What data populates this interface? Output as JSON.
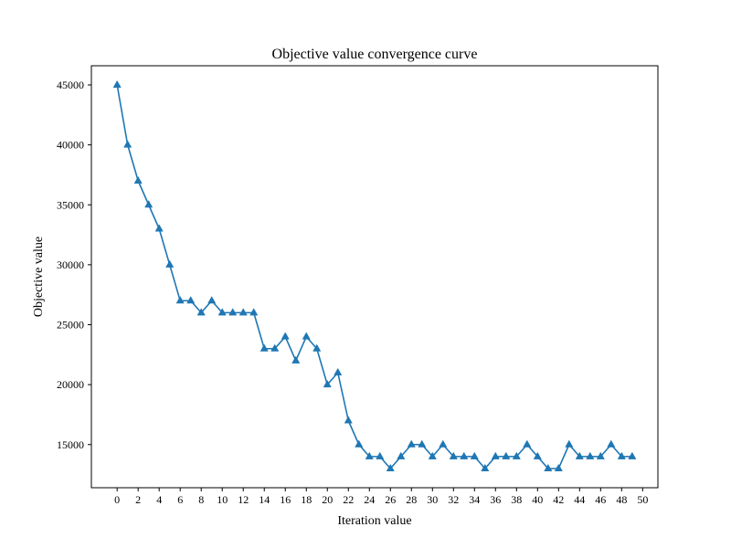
{
  "chart_data": {
    "type": "line",
    "title": "Objective value convergence curve",
    "xlabel": "Iteration value",
    "ylabel": "Objective value",
    "x": [
      0,
      1,
      2,
      3,
      4,
      5,
      6,
      7,
      8,
      9,
      10,
      11,
      12,
      13,
      14,
      15,
      16,
      17,
      18,
      19,
      20,
      21,
      22,
      23,
      24,
      25,
      26,
      27,
      28,
      29,
      30,
      31,
      32,
      33,
      34,
      35,
      36,
      37,
      38,
      39,
      40,
      41,
      42,
      43,
      44,
      45,
      46,
      47,
      48,
      49
    ],
    "series": [
      {
        "marker": "triangle-up",
        "values": [
          45000,
          40000,
          37000,
          35000,
          33000,
          30000,
          27000,
          27000,
          26000,
          27000,
          26000,
          26000,
          26000,
          26000,
          23000,
          23000,
          24000,
          22000,
          24000,
          23000,
          20000,
          21000,
          17000,
          15000,
          14000,
          14000,
          13000,
          14000,
          15000,
          15000,
          14000,
          15000,
          14000,
          14000,
          14000,
          13000,
          14000,
          14000,
          14000,
          15000,
          14000,
          13000,
          13000,
          15000,
          14000,
          14000,
          14000,
          15000,
          14000,
          14000
        ]
      }
    ],
    "x_ticks": [
      0,
      2,
      4,
      6,
      8,
      10,
      12,
      14,
      16,
      18,
      20,
      22,
      24,
      26,
      28,
      30,
      32,
      34,
      36,
      38,
      40,
      42,
      44,
      46,
      48,
      50
    ],
    "y_ticks": [
      15000,
      20000,
      25000,
      30000,
      35000,
      40000,
      45000
    ],
    "xlim": [
      -2.45,
      51.45
    ],
    "ylim": [
      11400,
      46600
    ],
    "grid": false,
    "line_color": "#1f77b4"
  }
}
